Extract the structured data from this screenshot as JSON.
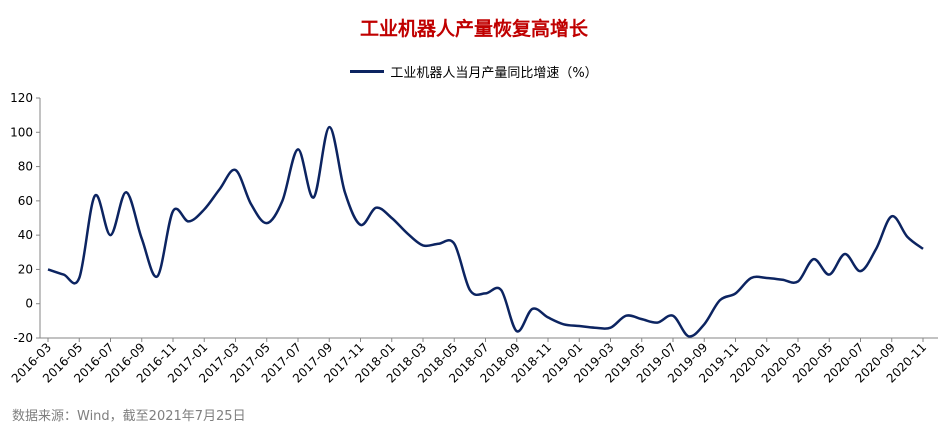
{
  "title": "工业机器人产量恢复高增长",
  "source": "数据来源：Wind，截至2021年7月25日",
  "colors": {
    "line": "#0c2461",
    "title": "#c00000",
    "axis": "#868686"
  },
  "chart_data": {
    "type": "line",
    "title": "工业机器人产量恢复高增长",
    "xlabel": "",
    "ylabel": "",
    "ylim": [
      -20,
      120
    ],
    "yticks": [
      -20,
      0,
      20,
      40,
      60,
      80,
      100,
      120
    ],
    "grid": false,
    "legend_position": "top-center",
    "x": [
      "2016-03",
      "2016-04",
      "2016-05",
      "2016-06",
      "2016-07",
      "2016-08",
      "2016-09",
      "2016-10",
      "2016-11",
      "2016-12",
      "2017-01",
      "2017-02",
      "2017-03",
      "2017-04",
      "2017-05",
      "2017-06",
      "2017-07",
      "2017-08",
      "2017-09",
      "2017-10",
      "2017-11",
      "2017-12",
      "2018-01",
      "2018-02",
      "2018-03",
      "2018-04",
      "2018-05",
      "2018-06",
      "2018-07",
      "2018-08",
      "2018-09",
      "2018-10",
      "2018-11",
      "2018-12",
      "2019-01",
      "2019-02",
      "2019-03",
      "2019-04",
      "2019-05",
      "2019-06",
      "2019-07",
      "2019-08",
      "2019-09",
      "2019-10",
      "2019-11",
      "2019-12",
      "2020-01",
      "2020-02",
      "2020-03",
      "2020-04",
      "2020-05",
      "2020-06",
      "2020-07",
      "2020-08",
      "2020-09",
      "2020-10",
      "2020-11"
    ],
    "tick_labels": [
      "2016-03",
      "2016-05",
      "2016-07",
      "2016-09",
      "2016-11",
      "2017-01",
      "2017-03",
      "2017-05",
      "2017-07",
      "2017-09",
      "2017-11",
      "2018-01",
      "2018-03",
      "2018-05",
      "2018-07",
      "2018-09",
      "2018-11",
      "2019-01",
      "2019-03",
      "2019-05",
      "2019-07",
      "2019-09",
      "2019-11",
      "2020-01",
      "2020-03",
      "2020-05",
      "2020-07",
      "2020-09",
      "2020-11"
    ],
    "series": [
      {
        "name": "工业机器人当月产量同比增速（%）",
        "values": [
          20,
          17,
          15,
          63,
          40,
          65,
          38,
          16,
          54,
          48,
          55,
          67,
          78,
          58,
          47,
          60,
          90,
          62,
          103,
          65,
          46,
          56,
          50,
          41,
          34,
          35,
          35,
          8,
          6,
          8,
          -16,
          -3,
          -8,
          -12,
          -13,
          -14,
          -14,
          -7,
          -9,
          -11,
          -7,
          -19,
          -12,
          2,
          6,
          15,
          15,
          14,
          13,
          26,
          17,
          29,
          19,
          32,
          51,
          39,
          32
        ]
      }
    ]
  }
}
